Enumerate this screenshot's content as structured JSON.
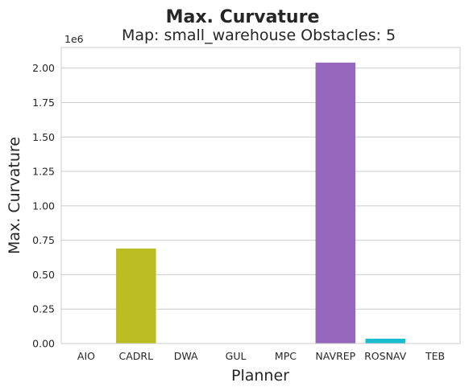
{
  "chart_data": {
    "type": "bar",
    "title": "Max. Curvature",
    "subtitle": "Map: small_warehouse Obstacles: 5",
    "xlabel": "Planner",
    "ylabel": "Max. Curvature",
    "offset_label": "1e6",
    "categories": [
      "AIO",
      "CADRL",
      "DWA",
      "GUL",
      "MPC",
      "NAVREP",
      "ROSNAV",
      "TEB"
    ],
    "values": [
      0,
      0.69,
      0,
      0,
      0,
      2.04,
      0.035,
      0
    ],
    "colors": [
      "#1f77b4",
      "#bcbd22",
      "#ff7f0e",
      "#2ca02c",
      "#d62728",
      "#9467bd",
      "#17becf",
      "#8c564b"
    ],
    "ylim": [
      0,
      2.15
    ],
    "yticks": [
      "0.00",
      "0.25",
      "0.50",
      "0.75",
      "1.00",
      "1.25",
      "1.50",
      "1.75",
      "2.00"
    ],
    "grid": true
  }
}
